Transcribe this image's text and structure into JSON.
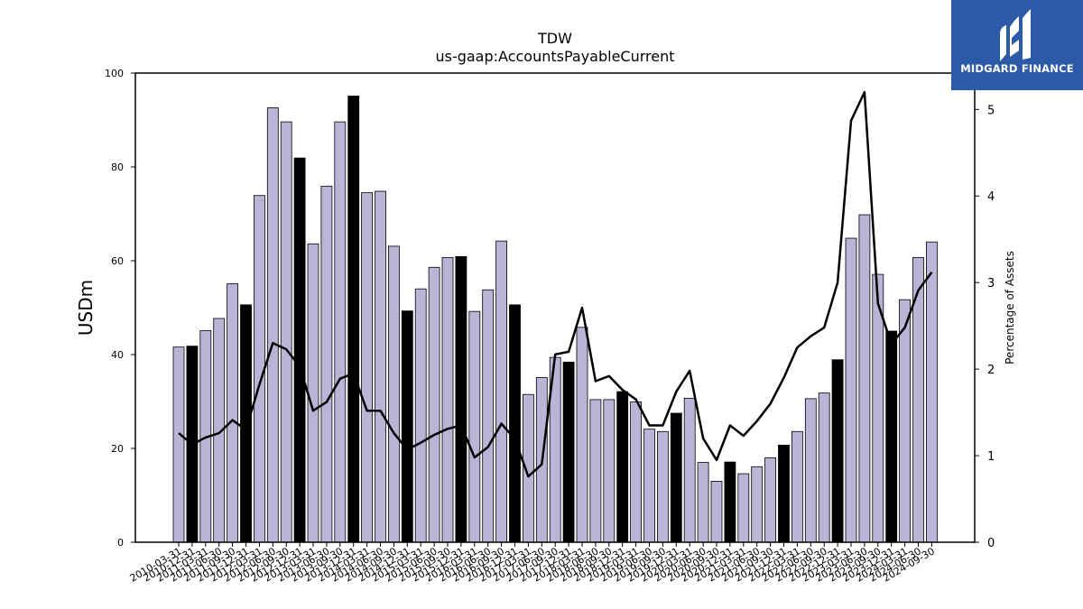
{
  "brand": {
    "name": "MIDGARD FINANCE",
    "color": "#2d5aa8"
  },
  "chart_data": {
    "type": "bar+line",
    "title": "TDW",
    "subtitle": "us-gaap:AccountsPayableCurrent",
    "ylabel": "USDm",
    "y2label": "Percentage of Assets",
    "ylim": [
      0,
      100
    ],
    "y2lim": [
      0,
      5.42
    ],
    "yticks": [
      0,
      20,
      40,
      60,
      80,
      100
    ],
    "y2ticks": [
      0,
      1,
      2,
      3,
      4,
      5
    ],
    "bar_color": "#b8b5d6",
    "highlight_color": "#000000",
    "line_color": "#000000",
    "x_tick_labels": [
      "2010-03-31",
      "2010-12-31",
      "2011-03-31",
      "2011-06-30",
      "2011-09-30",
      "2011-12-31",
      "2012-03-31",
      "2012-06-30",
      "2012-09-30",
      "2012-12-31",
      "2013-03-31",
      "2013-06-30",
      "2013-09-30",
      "2013-12-31",
      "2014-03-31",
      "2014-06-30",
      "2014-09-30",
      "2014-12-31",
      "2015-03-31",
      "2015-06-30",
      "2015-09-30",
      "2015-12-31",
      "2016-03-31",
      "2016-06-30",
      "2016-09-30",
      "2016-12-31",
      "2017-03-31",
      "2017-06-30",
      "2017-09-30",
      "2017-12-31",
      "2018-03-31",
      "2018-06-30",
      "2018-09-30",
      "2018-12-31",
      "2019-03-31",
      "2019-06-30",
      "2019-09-30",
      "2019-12-31",
      "2020-03-31",
      "2020-06-30",
      "2020-09-30",
      "2020-12-31",
      "2021-03-31",
      "2021-06-30",
      "2021-09-30",
      "2021-12-31",
      "2022-03-31",
      "2022-06-30",
      "2022-09-30",
      "2022-12-31",
      "2023-03-31",
      "2023-06-30",
      "2023-09-30",
      "2023-12-31",
      "2024-03-31",
      "2024-06-30",
      "2024-09-30"
    ],
    "values": [
      41.6,
      41.8,
      45.1,
      47.7,
      55.1,
      50.6,
      73.9,
      92.6,
      89.6,
      81.9,
      63.6,
      75.9,
      89.6,
      95.1,
      74.5,
      74.8,
      63.1,
      49.3,
      54.0,
      58.6,
      60.7,
      60.9,
      49.2,
      53.8,
      64.2,
      50.6,
      31.5,
      35.1,
      39.4,
      38.4,
      45.8,
      30.4,
      30.4,
      32.1,
      29.9,
      24.1,
      23.6,
      27.5,
      30.7,
      17.0,
      13.0,
      17.1,
      14.6,
      16.1,
      18.0,
      20.7,
      23.6,
      30.6,
      31.8,
      38.9,
      64.8,
      69.8,
      57.1,
      45.0,
      51.7,
      60.7,
      64.0
    ],
    "highlight": [
      false,
      true,
      false,
      false,
      false,
      true,
      false,
      false,
      false,
      true,
      false,
      false,
      false,
      true,
      false,
      false,
      false,
      true,
      false,
      false,
      false,
      true,
      false,
      false,
      false,
      true,
      false,
      false,
      false,
      true,
      false,
      false,
      false,
      true,
      false,
      false,
      false,
      true,
      false,
      false,
      false,
      true,
      false,
      false,
      false,
      true,
      false,
      false,
      false,
      true,
      false,
      false,
      false,
      true,
      false,
      false,
      false
    ],
    "line_values": [
      1.26,
      1.13,
      1.21,
      1.26,
      1.41,
      1.3,
      1.82,
      2.3,
      2.23,
      2.03,
      1.52,
      1.62,
      1.89,
      1.95,
      1.52,
      1.52,
      1.26,
      1.07,
      1.15,
      1.24,
      1.31,
      1.35,
      0.98,
      1.1,
      1.37,
      1.19,
      0.76,
      0.9,
      2.17,
      2.2,
      2.71,
      1.86,
      1.92,
      1.76,
      1.65,
      1.35,
      1.35,
      1.74,
      1.98,
      1.2,
      0.95,
      1.35,
      1.23,
      1.4,
      1.6,
      1.9,
      2.25,
      2.38,
      2.48,
      3.0,
      4.87,
      5.2,
      2.76,
      2.29,
      2.48,
      2.91,
      3.12
    ]
  }
}
